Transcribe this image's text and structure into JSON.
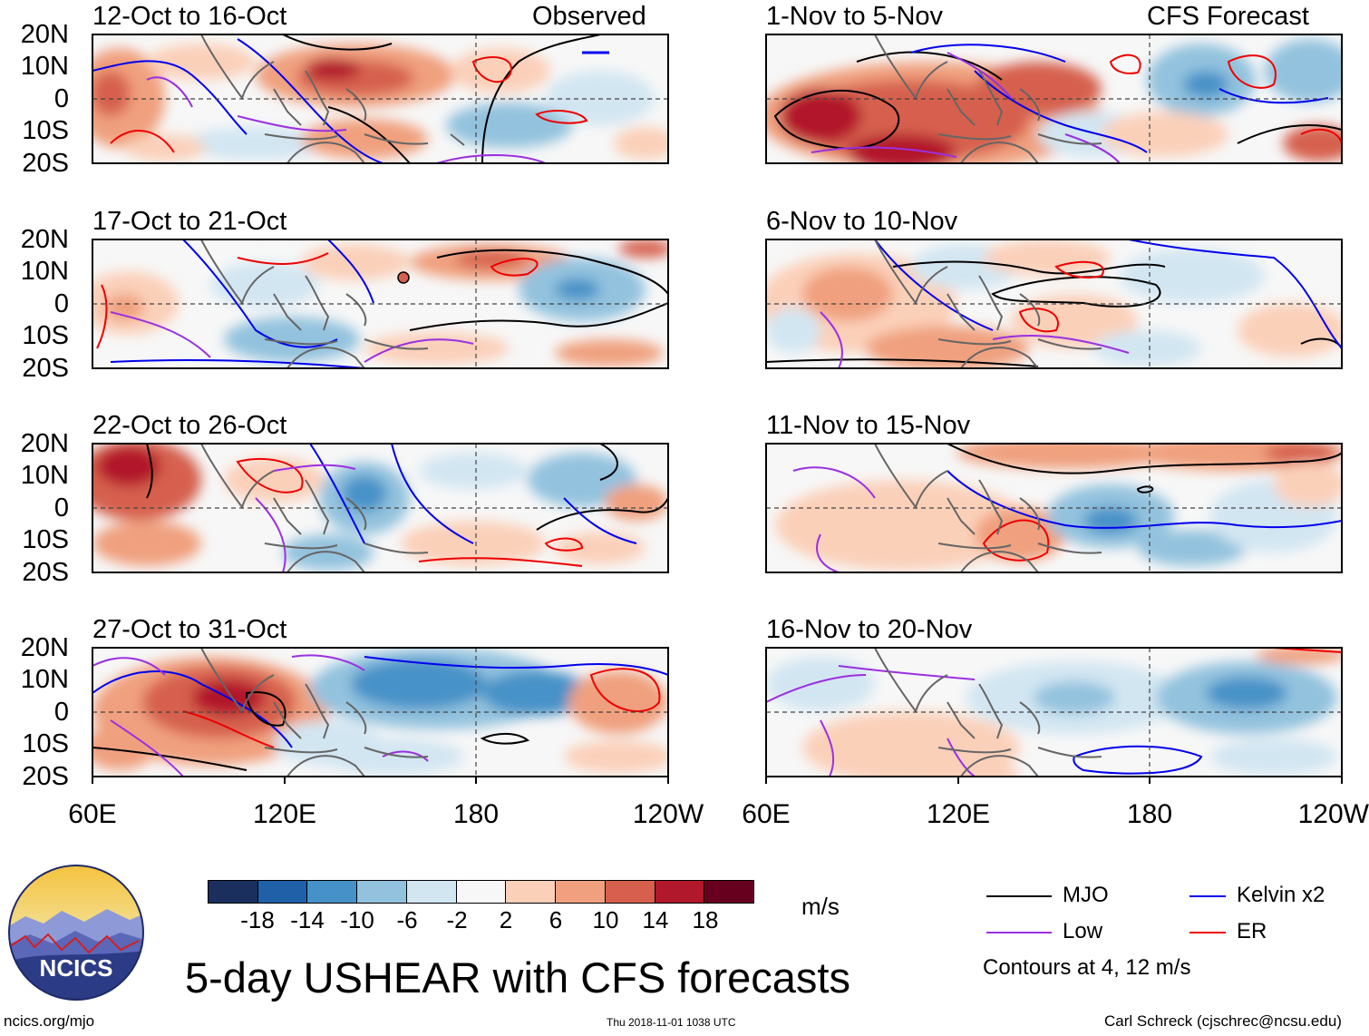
{
  "header": {
    "left_label": "Observed",
    "right_label": "CFS Forecast"
  },
  "panels": [
    {
      "period": "12-Oct to 16-Oct",
      "column": "observed"
    },
    {
      "period": "17-Oct to 21-Oct",
      "column": "observed"
    },
    {
      "period": "22-Oct to 26-Oct",
      "column": "observed"
    },
    {
      "period": "27-Oct to 31-Oct",
      "column": "observed"
    },
    {
      "period": "1-Nov to 5-Nov",
      "column": "forecast"
    },
    {
      "period": "6-Nov to 10-Nov",
      "column": "forecast"
    },
    {
      "period": "11-Nov to 15-Nov",
      "column": "forecast"
    },
    {
      "period": "16-Nov to 20-Nov",
      "column": "forecast"
    }
  ],
  "axes": {
    "lat_labels": [
      "20N",
      "10N",
      "0",
      "10S",
      "20S"
    ],
    "lon_labels": [
      "60E",
      "120E",
      "180",
      "120W"
    ]
  },
  "colorbar": {
    "labels": [
      "-18",
      "-14",
      "-10",
      "-6",
      "-2",
      "2",
      "6",
      "10",
      "14",
      "18"
    ],
    "colors": [
      "#1a2f5e",
      "#2060a8",
      "#4692c8",
      "#93c2de",
      "#d2e6f2",
      "#f7f7f7",
      "#fbd0b9",
      "#f0a07e",
      "#d6604d",
      "#b2182b",
      "#67001f"
    ],
    "units": "m/s"
  },
  "legend": {
    "items": [
      {
        "label": "MJO",
        "color": "#000000"
      },
      {
        "label": "Kelvin x2",
        "color": "#0000ee"
      },
      {
        "label": "Low",
        "color": "#9b30e0"
      },
      {
        "label": "ER",
        "color": "#ee0000"
      }
    ],
    "note": "Contours at 4, 12 m/s"
  },
  "footer": {
    "title": "5-day USHEAR with CFS forecasts",
    "logo_text": "NCICS",
    "site": "ncics.org/mjo",
    "timestamp": "Thu 2018-11-01 1038 UTC",
    "credit": "Carl Schreck (cjschrec@ncsu.edu)"
  }
}
